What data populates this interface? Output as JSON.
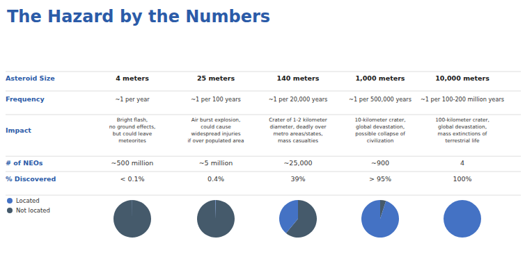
{
  "chart_data": [
    {
      "type": "table",
      "title": "The Hazard by the Numbers",
      "rows": [
        {
          "name": "Asteroid Size",
          "values": [
            "4 meters",
            "25 meters",
            "140 meters",
            "1,000 meters",
            "10,000 meters"
          ]
        },
        {
          "name": "Frequency",
          "values": [
            "~1 per year",
            "~1 per 100 years",
            "~1 per 20,000 years",
            "~1 per 500,000 years",
            "~1 per 100-200 million years"
          ]
        },
        {
          "name": "Impact",
          "values": [
            "Bright flash,\nno ground effects,\nbut could leave\nmeteorites",
            "Air burst explosion,\ncould cause\nwidespread injuries\nif over populated area",
            "Crater of 1-2 kilometer\ndiameter, deadly over\nmetro areas/states,\nmass casualties",
            "10-kilometer crater,\nglobal devastation,\npossible collapse of\ncivilization",
            "100-kilometer crater,\nglobal devastation,\nmass extinctions of\nterrestrial life"
          ]
        },
        {
          "name": "# of NEOs",
          "values": [
            "~500 million",
            "~5 million",
            "~25,000",
            "~900",
            "4"
          ]
        },
        {
          "name": "% Discovered",
          "values": [
            "< 0.1%",
            "0.4%",
            "39%",
            "> 95%",
            "100%"
          ]
        }
      ]
    },
    {
      "type": "pie",
      "legend": "lower left",
      "series": [
        {
          "name": "Not located",
          "color": "#455A6B",
          "values": [
            0.999,
            0.996,
            0.61,
            0.05,
            0
          ]
        },
        {
          "name": "Located",
          "color": "#4472C4",
          "values": [
            0.001,
            0.004,
            0.39,
            0.95,
            1.0
          ]
        }
      ]
    }
  ]
}
